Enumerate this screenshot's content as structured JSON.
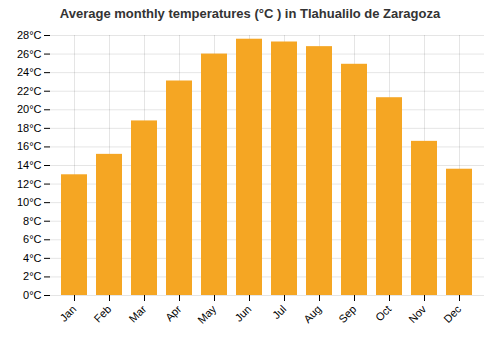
{
  "chart_data": {
    "type": "bar",
    "title": "Average monthly temperatures (°C ) in Tlahualilo de Zaragoza",
    "categories": [
      "Jan",
      "Feb",
      "Mar",
      "Apr",
      "May",
      "Jun",
      "Jul",
      "Aug",
      "Sep",
      "Oct",
      "Nov",
      "Dec"
    ],
    "values": [
      13.0,
      15.2,
      18.8,
      23.1,
      26.0,
      27.6,
      27.3,
      26.8,
      24.9,
      21.3,
      16.6,
      13.6
    ],
    "color": "#F5A623",
    "ylim": [
      0,
      28
    ],
    "yticks": [
      {
        "value": 0,
        "label": "0°C"
      },
      {
        "value": 2,
        "label": "2°C"
      },
      {
        "value": 4,
        "label": "4°C"
      },
      {
        "value": 6,
        "label": "6°C"
      },
      {
        "value": 8,
        "label": "8°C"
      },
      {
        "value": 10,
        "label": "10°C"
      },
      {
        "value": 12,
        "label": "12°C"
      },
      {
        "value": 14,
        "label": "14°C"
      },
      {
        "value": 16,
        "label": "16°C"
      },
      {
        "value": 18,
        "label": "18°C"
      },
      {
        "value": 20,
        "label": "20°C"
      },
      {
        "value": 22,
        "label": "22°C"
      },
      {
        "value": 24,
        "label": "24°C"
      },
      {
        "value": 26,
        "label": "26°C"
      },
      {
        "value": 28,
        "label": "28°C"
      }
    ],
    "grid": true
  }
}
